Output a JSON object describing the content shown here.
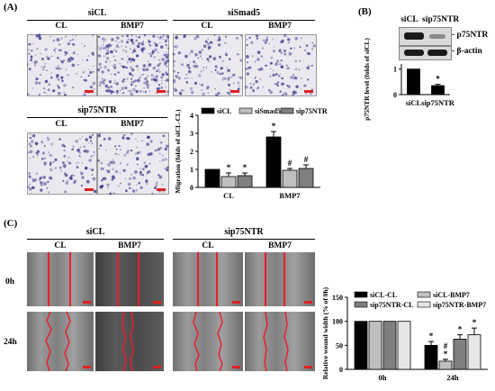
{
  "panel_a": {
    "label": "(A)",
    "groups": [
      {
        "title": "siCL",
        "columns": [
          "CL",
          "BMP7"
        ]
      },
      {
        "title": "siSmad5",
        "columns": [
          "CL",
          "BMP7"
        ]
      },
      {
        "title": "sip75NTR",
        "columns": [
          "CL",
          "BMP7"
        ]
      }
    ]
  },
  "panel_b": {
    "label": "(B)",
    "blot_columns": [
      "siCL",
      "sip75NTR"
    ],
    "bands": [
      "- p75NTR",
      "- β-actin"
    ]
  },
  "panel_c": {
    "label": "(C)",
    "groups": [
      {
        "title": "siCL",
        "columns": [
          "CL",
          "BMP7"
        ]
      },
      {
        "title": "sip75NTR",
        "columns": [
          "CL",
          "BMP7"
        ]
      }
    ],
    "rows": [
      "0h",
      "24h"
    ]
  },
  "chart_data": [
    {
      "type": "bar",
      "ylabel": "Migration (folds of siCL-CL)",
      "categories": [
        "CL",
        "BMP7"
      ],
      "ylim": [
        0,
        4
      ],
      "yticks": [
        "0",
        "1",
        "2",
        "3",
        "4"
      ],
      "legend_placement": "top",
      "series": [
        {
          "name": "siCL",
          "values": [
            1.0,
            2.8
          ],
          "errors": [
            0,
            0.3
          ],
          "color": "#000000",
          "marks": [
            "",
            "*"
          ]
        },
        {
          "name": "siSmad5",
          "values": [
            0.6,
            0.95
          ],
          "errors": [
            0.2,
            0.1
          ],
          "color": "#bfbfbf",
          "marks": [
            "*",
            "#"
          ]
        },
        {
          "name": "sip75NTR",
          "values": [
            0.65,
            1.05
          ],
          "errors": [
            0.15,
            0.2
          ],
          "color": "#7f7f7f",
          "marks": [
            "*",
            "#"
          ]
        }
      ]
    },
    {
      "type": "bar",
      "ylabel": "p75NTR level (folds of siCL)",
      "categories": [
        "siCL",
        "sip75NTR"
      ],
      "ylim": [
        0,
        1.2
      ],
      "yticks": [
        "0",
        "1"
      ],
      "series": [
        {
          "name": "",
          "values": [
            1.0,
            0.35
          ],
          "errors": [
            0,
            0.05
          ],
          "color": "#000000",
          "marks": [
            "",
            "*"
          ]
        }
      ]
    },
    {
      "type": "bar",
      "ylabel": "Relative wound width (% of 0h)",
      "categories": [
        "0h",
        "24h"
      ],
      "ylim": [
        0,
        150
      ],
      "yticks": [
        "0",
        "50",
        "100",
        "150"
      ],
      "legend_placement": "top",
      "series": [
        {
          "name": "siCL-CL",
          "values": [
            100,
            50
          ],
          "errors": [
            0,
            8
          ],
          "color": "#000000",
          "marks": [
            "",
            "*"
          ]
        },
        {
          "name": "siCL-BMP7",
          "values": [
            100,
            17
          ],
          "errors": [
            0,
            4
          ],
          "color": "#bfbfbf",
          "marks": [
            "",
            "#\n*"
          ]
        },
        {
          "name": "sip75NTR-CL",
          "values": [
            100,
            63
          ],
          "errors": [
            0,
            9
          ],
          "color": "#7f7f7f",
          "marks": [
            "",
            "*"
          ]
        },
        {
          "name": "sip75NTR-BMP7",
          "values": [
            100,
            72
          ],
          "errors": [
            0,
            14
          ],
          "color": "#e6e6e6",
          "marks": [
            "",
            "*"
          ]
        }
      ]
    }
  ]
}
